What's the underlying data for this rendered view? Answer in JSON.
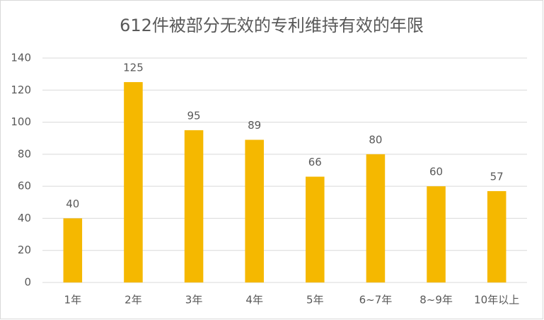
{
  "chart_data": {
    "type": "bar",
    "title": "612件被部分无效的专利维持有效的年限",
    "categories": [
      "1年",
      "2年",
      "3年",
      "4年",
      "5年",
      "6~7年",
      "8~9年",
      "10年以上"
    ],
    "values": [
      40,
      125,
      95,
      89,
      66,
      80,
      60,
      57
    ],
    "color": "#f5b800",
    "ylim": [
      0,
      140
    ],
    "yticks": [
      0,
      20,
      40,
      60,
      80,
      100,
      120,
      140
    ],
    "grid": true,
    "data_labels": true
  }
}
